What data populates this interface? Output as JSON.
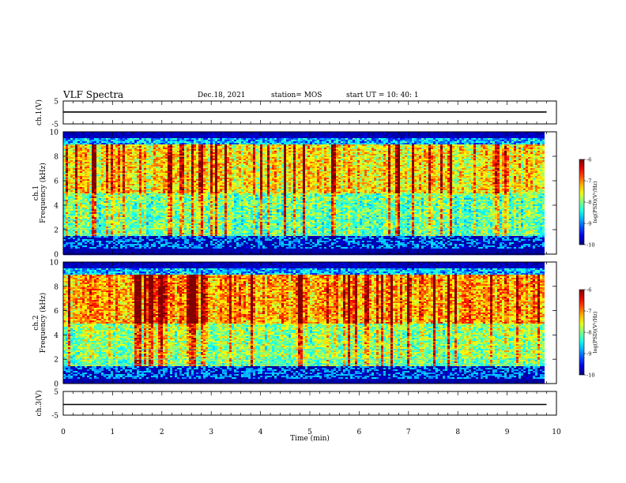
{
  "header": {
    "title": "VLF Spectra",
    "date": "Dec.18, 2021",
    "station": "station= MOS",
    "start": "start  UT =   10: 40: 1"
  },
  "chart_data": [
    {
      "type": "line",
      "panel": "waveform-ch1",
      "ylabel": "ch.1(V)",
      "ylim": [
        -5,
        5
      ],
      "yticks": [
        "5",
        "-5"
      ],
      "xlim": [
        0,
        10
      ],
      "series": [
        {
          "x": [
            0,
            9.8
          ],
          "y": [
            0.2,
            0.2
          ]
        }
      ]
    },
    {
      "type": "heatmap",
      "panel": "spectrogram-ch1",
      "ylabel": "ch.1\nFrequency (kHz)",
      "ylim": [
        0,
        10
      ],
      "yticks": [
        "0",
        "2",
        "4",
        "6",
        "8",
        "10"
      ],
      "xlim": [
        0,
        10
      ],
      "data_end_min": 9.8,
      "colorbar": {
        "label": "log(PSD)(V²/Hz)",
        "range": [
          -10,
          -6
        ],
        "ticks": [
          "-6",
          "-7",
          "-8",
          "-9",
          "-10"
        ]
      }
    },
    {
      "type": "heatmap",
      "panel": "spectrogram-ch2",
      "ylabel": "ch.2\nFrequency (kHz)",
      "ylim": [
        0,
        10
      ],
      "yticks": [
        "0",
        "2",
        "4",
        "6",
        "8",
        "10"
      ],
      "xlim": [
        0,
        10
      ],
      "data_end_min": 9.8,
      "colorbar": {
        "label": "log(PSD)(V²/Hz)",
        "range": [
          -10,
          -6
        ],
        "ticks": [
          "-6",
          "-7",
          "-8",
          "-9",
          "-10"
        ]
      }
    },
    {
      "type": "line",
      "panel": "waveform-ch3",
      "ylabel": "ch.3(V)",
      "ylim": [
        -5,
        5
      ],
      "yticks": [
        "5",
        "-5"
      ],
      "xlim": [
        0,
        10
      ],
      "xlabel": "Time (min)",
      "xticks": [
        "0",
        "1",
        "2",
        "3",
        "4",
        "5",
        "6",
        "7",
        "8",
        "9",
        "10"
      ],
      "series": [
        {
          "x": [
            0,
            9.8
          ],
          "y": [
            -0.5,
            -0.5
          ]
        }
      ]
    }
  ]
}
